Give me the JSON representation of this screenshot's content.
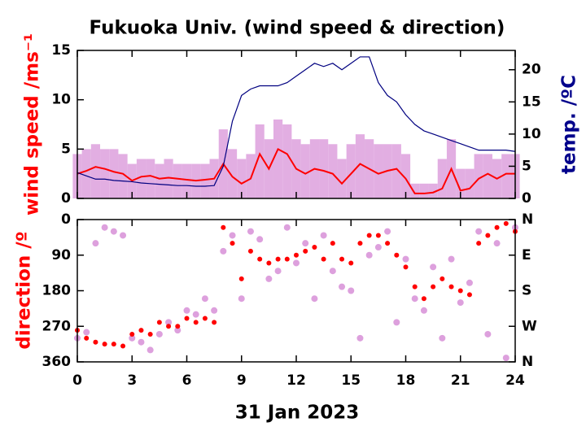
{
  "chart_data": [
    {
      "type": "line",
      "title": "Fukuoka Univ. (wind speed & direction)",
      "ylabel": "wind speed /ms⁻¹",
      "y2label": "temp. /ºC",
      "x": [
        0,
        0.5,
        1,
        1.5,
        2,
        2.5,
        3,
        3.5,
        4,
        4.5,
        5,
        5.5,
        6,
        6.5,
        7,
        7.5,
        8,
        8.5,
        9,
        9.5,
        10,
        10.5,
        11,
        11.5,
        12,
        12.5,
        13,
        13.5,
        14,
        14.5,
        15,
        15.5,
        16,
        16.5,
        17,
        17.5,
        18,
        18.5,
        19,
        19.5,
        20,
        20.5,
        21,
        21.5,
        22,
        22.5,
        23,
        23.5,
        24
      ],
      "xlim": [
        0,
        24
      ],
      "ylim": [
        0,
        15
      ],
      "yticks": [
        0,
        5,
        10,
        15
      ],
      "y2lim": [
        0,
        23
      ],
      "y2ticks": [
        0,
        5,
        10,
        15,
        20
      ],
      "series": [
        {
          "color": "#dda0dd",
          "style": "spikes",
          "values": [
            4.5,
            5,
            5.5,
            5,
            5,
            4.5,
            3.5,
            4,
            4,
            3.5,
            4,
            3.5,
            3.5,
            3.5,
            3.5,
            4,
            7,
            5,
            4,
            4.5,
            7.5,
            6,
            8,
            7.5,
            6,
            5.5,
            6,
            6,
            5.5,
            4,
            5.5,
            6.5,
            6,
            5.5,
            5.5,
            5.5,
            4.5,
            1.5,
            1.5,
            1.5,
            4,
            6,
            3,
            3,
            4.5,
            4.5,
            4,
            4.5,
            4.5
          ]
        },
        {
          "color": "#ff0000",
          "style": "line",
          "values": [
            2.5,
            2.8,
            3.2,
            3,
            2.7,
            2.5,
            1.8,
            2.2,
            2.3,
            2,
            2.1,
            2,
            1.9,
            1.8,
            1.9,
            2,
            3.5,
            2.2,
            1.5,
            2,
            4.5,
            3,
            5,
            4.5,
            3,
            2.5,
            3,
            2.8,
            2.5,
            1.5,
            2.5,
            3.5,
            3,
            2.5,
            2.8,
            3,
            2,
            0.5,
            0.5,
            0.6,
            1,
            3,
            0.8,
            1,
            2,
            2.5,
            2,
            2.5,
            2.5
          ]
        },
        {
          "color": "#000080",
          "style": "line",
          "axis": "y2",
          "values": [
            4,
            3.5,
            3,
            3,
            2.8,
            2.7,
            2.6,
            2.4,
            2.3,
            2.2,
            2.1,
            2,
            2,
            1.9,
            1.9,
            2,
            5,
            12,
            16,
            17,
            17.5,
            17.5,
            17.5,
            18,
            19,
            20,
            21,
            20.5,
            21,
            20,
            21,
            22,
            22,
            18,
            16,
            15,
            13,
            11.5,
            10.5,
            10,
            9.5,
            9,
            8.5,
            8,
            7.5,
            7.5,
            7.5,
            7.5,
            7.3
          ]
        }
      ]
    },
    {
      "type": "scatter",
      "ylabel": "direction /º",
      "xlabel": "31 Jan 2023",
      "x": [
        0,
        0.5,
        1,
        1.5,
        2,
        2.5,
        3,
        3.5,
        4,
        4.5,
        5,
        5.5,
        6,
        6.5,
        7,
        7.5,
        8,
        8.5,
        9,
        9.5,
        10,
        10.5,
        11,
        11.5,
        12,
        12.5,
        13,
        13.5,
        14,
        14.5,
        15,
        15.5,
        16,
        16.5,
        17,
        17.5,
        18,
        18.5,
        19,
        19.5,
        20,
        20.5,
        21,
        21.5,
        22,
        22.5,
        23,
        23.5,
        24
      ],
      "xlim": [
        0,
        24
      ],
      "xticks": [
        0,
        3,
        6,
        9,
        12,
        15,
        18,
        21,
        24
      ],
      "ylim": [
        360,
        0
      ],
      "yticks": [
        0,
        90,
        180,
        270,
        360
      ],
      "y2ticks": [
        {
          "value": 0,
          "label": "N"
        },
        {
          "value": 90,
          "label": "E"
        },
        {
          "value": 180,
          "label": "S"
        },
        {
          "value": 270,
          "label": "W"
        },
        {
          "value": 360,
          "label": "N"
        }
      ],
      "series": [
        {
          "color": "#dda0dd",
          "values": [
            300,
            285,
            60,
            20,
            30,
            40,
            300,
            310,
            330,
            290,
            260,
            280,
            230,
            240,
            200,
            230,
            80,
            40,
            200,
            30,
            50,
            150,
            130,
            20,
            110,
            60,
            200,
            40,
            130,
            170,
            180,
            300,
            90,
            70,
            30,
            260,
            100,
            200,
            230,
            120,
            300,
            100,
            210,
            160,
            30,
            290,
            60,
            350,
            20
          ]
        },
        {
          "color": "#ff0000",
          "values": [
            280,
            300,
            310,
            315,
            315,
            320,
            290,
            280,
            290,
            260,
            270,
            270,
            250,
            260,
            250,
            260,
            20,
            60,
            150,
            80,
            100,
            110,
            100,
            100,
            90,
            80,
            70,
            100,
            60,
            100,
            110,
            60,
            40,
            40,
            60,
            90,
            120,
            170,
            200,
            170,
            150,
            170,
            180,
            190,
            60,
            40,
            20,
            10,
            30
          ]
        }
      ]
    }
  ]
}
